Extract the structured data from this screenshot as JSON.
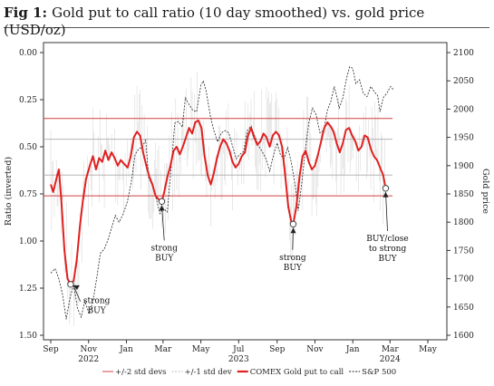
{
  "title": {
    "fig_label": "Fig 1:",
    "text": "Gold put to call ratio (10 day smoothed) vs. gold price (USD/oz)"
  },
  "chart_data": {
    "type": "line",
    "left_axis": {
      "label": "Ratio (inverted)",
      "inverted": true,
      "range": [
        0.0,
        1.5
      ],
      "ticks": [
        "0.00",
        "0.25",
        "0.50",
        "0.75",
        "1.00",
        "1.25",
        "1.50"
      ],
      "tick_values": [
        0,
        0.25,
        0.5,
        0.75,
        1.0,
        1.25,
        1.5
      ]
    },
    "right_axis": {
      "label": "Gold price",
      "range": [
        1600,
        2100
      ],
      "ticks": [
        "1600",
        "1650",
        "1700",
        "1750",
        "1800",
        "1850",
        "1900",
        "1950",
        "2000",
        "2050",
        "2100"
      ],
      "tick_values": [
        1600,
        1650,
        1700,
        1750,
        1800,
        1850,
        1900,
        1950,
        2000,
        2050,
        2100
      ]
    },
    "x_axis": {
      "range": [
        "2022-09-01",
        "2024-05-20"
      ],
      "ticks": [
        {
          "label": "Sep",
          "date": "2022-09-01"
        },
        {
          "label": "Nov",
          "date": "2022-11-01"
        },
        {
          "label": "Jan",
          "date": "2023-01-01"
        },
        {
          "label": "Mar",
          "date": "2023-03-01"
        },
        {
          "label": "May",
          "date": "2023-05-01"
        },
        {
          "label": "Jul",
          "date": "2023-07-01"
        },
        {
          "label": "Sep",
          "date": "2023-09-01"
        },
        {
          "label": "Nov",
          "date": "2023-11-01"
        },
        {
          "label": "Jan",
          "date": "2024-01-01"
        },
        {
          "label": "Mar",
          "date": "2024-03-01"
        },
        {
          "label": "May",
          "date": "2024-05-01"
        }
      ],
      "year_labels": [
        {
          "label": "2022",
          "date": "2022-11-01"
        },
        {
          "label": "2023",
          "date": "2023-07-01"
        },
        {
          "label": "2024",
          "date": "2024-03-01"
        }
      ]
    },
    "reference_lines": {
      "std2": [
        0.35,
        0.76
      ],
      "std1": [
        0.46,
        0.65
      ]
    },
    "series": [
      {
        "name": "COMEX Gold put to call",
        "axis": "left",
        "color": "#e02020",
        "points": [
          [
            "2022-09-01",
            0.7
          ],
          [
            "2022-09-05",
            0.74
          ],
          [
            "2022-09-10",
            0.67
          ],
          [
            "2022-09-14",
            0.62
          ],
          [
            "2022-09-18",
            0.78
          ],
          [
            "2022-09-23",
            1.05
          ],
          [
            "2022-09-28",
            1.2
          ],
          [
            "2022-10-03",
            1.23
          ],
          [
            "2022-10-08",
            1.21
          ],
          [
            "2022-10-13",
            1.1
          ],
          [
            "2022-10-18",
            0.92
          ],
          [
            "2022-10-23",
            0.78
          ],
          [
            "2022-10-28",
            0.67
          ],
          [
            "2022-11-03",
            0.6
          ],
          [
            "2022-11-08",
            0.55
          ],
          [
            "2022-11-13",
            0.62
          ],
          [
            "2022-11-18",
            0.56
          ],
          [
            "2022-11-23",
            0.58
          ],
          [
            "2022-11-28",
            0.52
          ],
          [
            "2022-12-03",
            0.57
          ],
          [
            "2022-12-08",
            0.53
          ],
          [
            "2022-12-13",
            0.56
          ],
          [
            "2022-12-18",
            0.6
          ],
          [
            "2022-12-23",
            0.57
          ],
          [
            "2022-12-28",
            0.59
          ],
          [
            "2023-01-03",
            0.61
          ],
          [
            "2023-01-08",
            0.55
          ],
          [
            "2023-01-13",
            0.45
          ],
          [
            "2023-01-18",
            0.42
          ],
          [
            "2023-01-23",
            0.44
          ],
          [
            "2023-01-28",
            0.53
          ],
          [
            "2023-02-02",
            0.6
          ],
          [
            "2023-02-07",
            0.66
          ],
          [
            "2023-02-12",
            0.7
          ],
          [
            "2023-02-17",
            0.76
          ],
          [
            "2023-02-22",
            0.78
          ],
          [
            "2023-02-27",
            0.79
          ],
          [
            "2023-03-03",
            0.74
          ],
          [
            "2023-03-08",
            0.66
          ],
          [
            "2023-03-13",
            0.6
          ],
          [
            "2023-03-18",
            0.52
          ],
          [
            "2023-03-23",
            0.5
          ],
          [
            "2023-03-28",
            0.54
          ],
          [
            "2023-04-02",
            0.5
          ],
          [
            "2023-04-07",
            0.45
          ],
          [
            "2023-04-12",
            0.4
          ],
          [
            "2023-04-17",
            0.43
          ],
          [
            "2023-04-22",
            0.37
          ],
          [
            "2023-04-27",
            0.36
          ],
          [
            "2023-05-02",
            0.4
          ],
          [
            "2023-05-07",
            0.55
          ],
          [
            "2023-05-12",
            0.65
          ],
          [
            "2023-05-17",
            0.7
          ],
          [
            "2023-05-22",
            0.64
          ],
          [
            "2023-05-27",
            0.56
          ],
          [
            "2023-06-01",
            0.5
          ],
          [
            "2023-06-06",
            0.46
          ],
          [
            "2023-06-11",
            0.48
          ],
          [
            "2023-06-16",
            0.52
          ],
          [
            "2023-06-21",
            0.58
          ],
          [
            "2023-06-26",
            0.61
          ],
          [
            "2023-07-01",
            0.59
          ],
          [
            "2023-07-06",
            0.55
          ],
          [
            "2023-07-11",
            0.53
          ],
          [
            "2023-07-16",
            0.44
          ],
          [
            "2023-07-21",
            0.4
          ],
          [
            "2023-07-26",
            0.45
          ],
          [
            "2023-07-31",
            0.49
          ],
          [
            "2023-08-05",
            0.47
          ],
          [
            "2023-08-10",
            0.43
          ],
          [
            "2023-08-15",
            0.45
          ],
          [
            "2023-08-20",
            0.5
          ],
          [
            "2023-08-25",
            0.44
          ],
          [
            "2023-08-30",
            0.42
          ],
          [
            "2023-09-04",
            0.44
          ],
          [
            "2023-09-09",
            0.5
          ],
          [
            "2023-09-14",
            0.65
          ],
          [
            "2023-09-19",
            0.82
          ],
          [
            "2023-09-24",
            0.9
          ],
          [
            "2023-09-27",
            0.91
          ],
          [
            "2023-10-02",
            0.82
          ],
          [
            "2023-10-07",
            0.66
          ],
          [
            "2023-10-12",
            0.55
          ],
          [
            "2023-10-17",
            0.52
          ],
          [
            "2023-10-22",
            0.58
          ],
          [
            "2023-10-27",
            0.62
          ],
          [
            "2023-11-01",
            0.6
          ],
          [
            "2023-11-06",
            0.54
          ],
          [
            "2023-11-11",
            0.47
          ],
          [
            "2023-11-16",
            0.4
          ],
          [
            "2023-11-21",
            0.37
          ],
          [
            "2023-11-26",
            0.39
          ],
          [
            "2023-12-01",
            0.42
          ],
          [
            "2023-12-06",
            0.48
          ],
          [
            "2023-12-11",
            0.53
          ],
          [
            "2023-12-16",
            0.48
          ],
          [
            "2023-12-21",
            0.41
          ],
          [
            "2023-12-26",
            0.4
          ],
          [
            "2023-12-31",
            0.44
          ],
          [
            "2024-01-05",
            0.47
          ],
          [
            "2024-01-10",
            0.52
          ],
          [
            "2024-01-15",
            0.5
          ],
          [
            "2024-01-20",
            0.44
          ],
          [
            "2024-01-25",
            0.45
          ],
          [
            "2024-01-30",
            0.51
          ],
          [
            "2024-02-04",
            0.55
          ],
          [
            "2024-02-09",
            0.57
          ],
          [
            "2024-02-14",
            0.61
          ],
          [
            "2024-02-19",
            0.65
          ],
          [
            "2024-02-23",
            0.72
          ]
        ],
        "highlighted_points": [
          [
            "2022-10-03",
            1.23
          ],
          [
            "2023-02-27",
            0.79
          ],
          [
            "2023-09-27",
            0.91
          ],
          [
            "2024-02-23",
            0.72
          ]
        ]
      },
      {
        "name": "S&P 500",
        "axis": "right",
        "color": "#222222",
        "dashed": true,
        "points": [
          [
            "2022-09-01",
            1710
          ],
          [
            "2022-09-08",
            1718
          ],
          [
            "2022-09-14",
            1700
          ],
          [
            "2022-09-20",
            1672
          ],
          [
            "2022-09-26",
            1628
          ],
          [
            "2022-10-02",
            1666
          ],
          [
            "2022-10-08",
            1690
          ],
          [
            "2022-10-14",
            1648
          ],
          [
            "2022-10-20",
            1632
          ],
          [
            "2022-10-26",
            1660
          ],
          [
            "2022-11-02",
            1638
          ],
          [
            "2022-11-08",
            1660
          ],
          [
            "2022-11-14",
            1700
          ],
          [
            "2022-11-20",
            1745
          ],
          [
            "2022-11-26",
            1752
          ],
          [
            "2022-12-02",
            1768
          ],
          [
            "2022-12-08",
            1790
          ],
          [
            "2022-12-14",
            1812
          ],
          [
            "2022-12-20",
            1800
          ],
          [
            "2022-12-27",
            1815
          ],
          [
            "2023-01-03",
            1838
          ],
          [
            "2023-01-09",
            1872
          ],
          [
            "2023-01-15",
            1920
          ],
          [
            "2023-01-21",
            1930
          ],
          [
            "2023-01-26",
            1932
          ],
          [
            "2023-02-01",
            1945
          ],
          [
            "2023-02-06",
            1878
          ],
          [
            "2023-02-12",
            1865
          ],
          [
            "2023-02-18",
            1842
          ],
          [
            "2023-02-24",
            1815
          ],
          [
            "2023-03-01",
            1825
          ],
          [
            "2023-03-08",
            1818
          ],
          [
            "2023-03-12",
            1870
          ],
          [
            "2023-03-16",
            1920
          ],
          [
            "2023-03-20",
            1975
          ],
          [
            "2023-03-26",
            1978
          ],
          [
            "2023-04-01",
            1968
          ],
          [
            "2023-04-06",
            2020
          ],
          [
            "2023-04-12",
            2008
          ],
          [
            "2023-04-18",
            1998
          ],
          [
            "2023-04-24",
            1995
          ],
          [
            "2023-05-01",
            2042
          ],
          [
            "2023-05-05",
            2050
          ],
          [
            "2023-05-10",
            2030
          ],
          [
            "2023-05-16",
            1990
          ],
          [
            "2023-05-22",
            1962
          ],
          [
            "2023-05-28",
            1942
          ],
          [
            "2023-06-03",
            1958
          ],
          [
            "2023-06-09",
            1962
          ],
          [
            "2023-06-15",
            1958
          ],
          [
            "2023-06-21",
            1935
          ],
          [
            "2023-06-27",
            1912
          ],
          [
            "2023-07-03",
            1920
          ],
          [
            "2023-07-09",
            1925
          ],
          [
            "2023-07-15",
            1962
          ],
          [
            "2023-07-21",
            1970
          ],
          [
            "2023-07-27",
            1952
          ],
          [
            "2023-08-02",
            1935
          ],
          [
            "2023-08-08",
            1925
          ],
          [
            "2023-08-14",
            1912
          ],
          [
            "2023-08-20",
            1890
          ],
          [
            "2023-08-26",
            1918
          ],
          [
            "2023-09-01",
            1940
          ],
          [
            "2023-09-06",
            1920
          ],
          [
            "2023-09-12",
            1912
          ],
          [
            "2023-09-18",
            1932
          ],
          [
            "2023-09-24",
            1905
          ],
          [
            "2023-09-30",
            1865
          ],
          [
            "2023-10-05",
            1820
          ],
          [
            "2023-10-10",
            1862
          ],
          [
            "2023-10-16",
            1922
          ],
          [
            "2023-10-22",
            1975
          ],
          [
            "2023-10-28",
            2002
          ],
          [
            "2023-11-03",
            1990
          ],
          [
            "2023-11-09",
            1958
          ],
          [
            "2023-11-15",
            1962
          ],
          [
            "2023-11-21",
            1998
          ],
          [
            "2023-11-27",
            2015
          ],
          [
            "2023-12-02",
            2040
          ],
          [
            "2023-12-05",
            2028
          ],
          [
            "2023-12-10",
            2002
          ],
          [
            "2023-12-16",
            2020
          ],
          [
            "2023-12-22",
            2055
          ],
          [
            "2023-12-27",
            2075
          ],
          [
            "2024-01-01",
            2072
          ],
          [
            "2024-01-06",
            2045
          ],
          [
            "2024-01-12",
            2052
          ],
          [
            "2024-01-18",
            2028
          ],
          [
            "2024-01-24",
            2022
          ],
          [
            "2024-01-30",
            2040
          ],
          [
            "2024-02-05",
            2030
          ],
          [
            "2024-02-10",
            2024
          ],
          [
            "2024-02-14",
            1995
          ],
          [
            "2024-02-19",
            2020
          ],
          [
            "2024-02-25",
            2028
          ],
          [
            "2024-03-02",
            2040
          ],
          [
            "2024-03-06",
            2035
          ]
        ]
      }
    ],
    "annotations": [
      {
        "lines": [
          "strong",
          "BUY"
        ],
        "date": "2022-11-14",
        "value": 1.33,
        "point_date": "2022-10-03",
        "point_value": 1.23,
        "arrow": "left"
      },
      {
        "lines": [
          "strong",
          "BUY"
        ],
        "date": "2023-03-03",
        "value": 1.05,
        "point_date": "2023-02-27",
        "point_value": 0.79,
        "arrow": "up"
      },
      {
        "lines": [
          "strong",
          "BUY"
        ],
        "date": "2023-09-26",
        "value": 1.1,
        "point_date": "2023-09-27",
        "point_value": 0.91,
        "arrow": "up"
      },
      {
        "lines": [
          "BUY/close",
          "to strong",
          "BUY"
        ],
        "date": "2024-02-26",
        "value": 1.0,
        "point_date": "2024-02-23",
        "point_value": 0.72,
        "arrow": "up"
      }
    ],
    "legend": {
      "position": "bottom",
      "items": [
        {
          "label": "+/-2 std devs",
          "style": "thin-red",
          "color": "#d04040"
        },
        {
          "label": "+/-1 std dev",
          "style": "thin-gray",
          "color": "#aaaaaa"
        },
        {
          "label": "COMEX Gold put to call",
          "style": "thick-red",
          "color": "#e02020"
        },
        {
          "label": "S&P 500",
          "style": "dashed-black",
          "color": "#222222"
        }
      ]
    }
  }
}
